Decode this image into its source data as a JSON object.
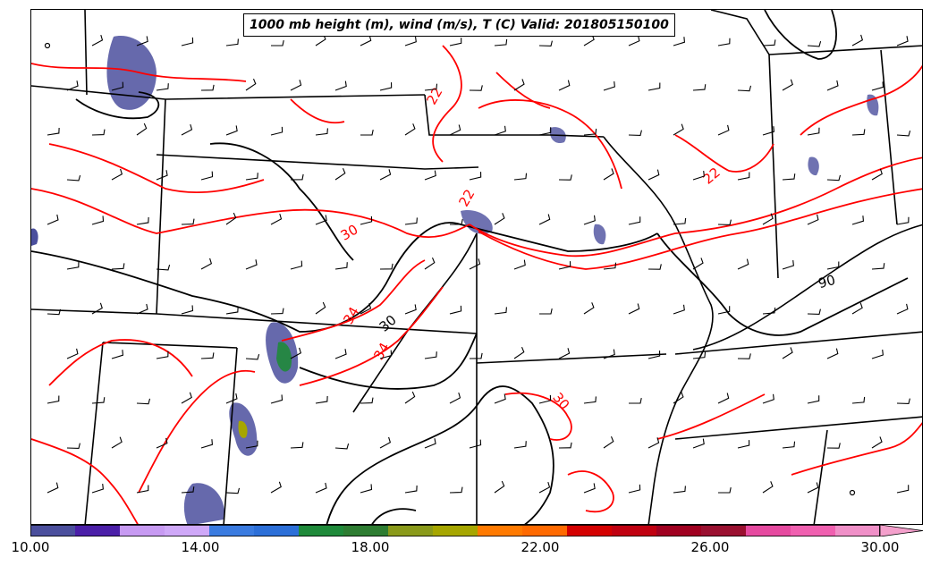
{
  "title": "1000 mb height (m), wind (m/s), T (C) Valid: 201805150100",
  "map": {
    "temperature_contour_labels": [
      "22",
      "22",
      "22",
      "30",
      "30",
      "34",
      "34"
    ],
    "height_contour_labels": [
      "30",
      "90"
    ],
    "colors": {
      "temperature_contour": "#ff0000",
      "height_contour": "#000000",
      "state_borders": "#000000",
      "wind_barbs": "#000000"
    }
  },
  "colorbar": {
    "tick_labels": [
      "10.00",
      "14.00",
      "18.00",
      "22.00",
      "26.00",
      "30.00"
    ],
    "min": 10,
    "max": 31,
    "extend": "max",
    "colors": [
      "#4b4f9d",
      "#4b1fa8",
      "#c79af2",
      "#cfa8f8",
      "#3a7be0",
      "#2c6fd8",
      "#1f8a3a",
      "#2e7d32",
      "#8a9a1a",
      "#a6a600",
      "#ff7a00",
      "#ff6a00",
      "#d40000",
      "#c00010",
      "#a00020",
      "#9a1030",
      "#e64aa0",
      "#f060b0",
      "#f090c8"
    ]
  }
}
